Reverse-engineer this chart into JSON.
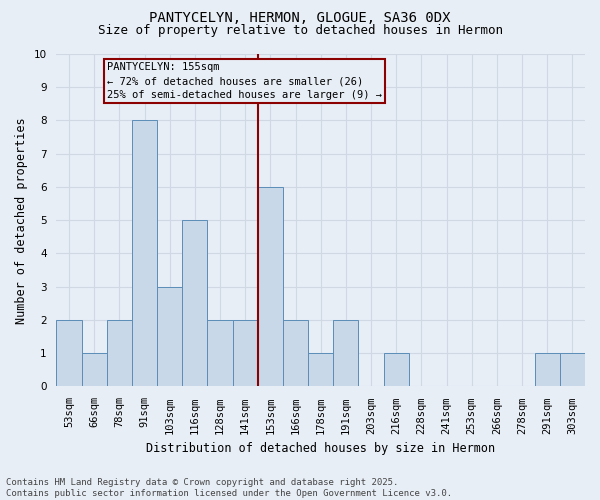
{
  "title1": "PANTYCELYN, HERMON, GLOGUE, SA36 0DX",
  "title2": "Size of property relative to detached houses in Hermon",
  "xlabel": "Distribution of detached houses by size in Hermon",
  "ylabel": "Number of detached properties",
  "categories": [
    "53sqm",
    "66sqm",
    "78sqm",
    "91sqm",
    "103sqm",
    "116sqm",
    "128sqm",
    "141sqm",
    "153sqm",
    "166sqm",
    "178sqm",
    "191sqm",
    "203sqm",
    "216sqm",
    "228sqm",
    "241sqm",
    "253sqm",
    "266sqm",
    "278sqm",
    "291sqm",
    "303sqm"
  ],
  "values": [
    2,
    1,
    2,
    8,
    3,
    5,
    2,
    2,
    6,
    2,
    1,
    2,
    0,
    1,
    0,
    0,
    0,
    0,
    0,
    1,
    1
  ],
  "bar_color": "#c8d8e8",
  "bar_edge_color": "#5b8db8",
  "vline_x_index": 8,
  "vline_color": "#8b0000",
  "annotation_text": "PANTYCELYN: 155sqm\n← 72% of detached houses are smaller (26)\n25% of semi-detached houses are larger (9) →",
  "annotation_box_color": "#8b0000",
  "ylim": [
    0,
    10
  ],
  "yticks": [
    0,
    1,
    2,
    3,
    4,
    5,
    6,
    7,
    8,
    9,
    10
  ],
  "grid_color": "#d0d8e4",
  "bg_color": "#e8eef6",
  "footer": "Contains HM Land Registry data © Crown copyright and database right 2025.\nContains public sector information licensed under the Open Government Licence v3.0.",
  "title_fontsize": 10,
  "subtitle_fontsize": 9,
  "axis_label_fontsize": 8.5,
  "tick_fontsize": 7.5,
  "footer_fontsize": 6.5,
  "ann_fontsize": 7.5
}
